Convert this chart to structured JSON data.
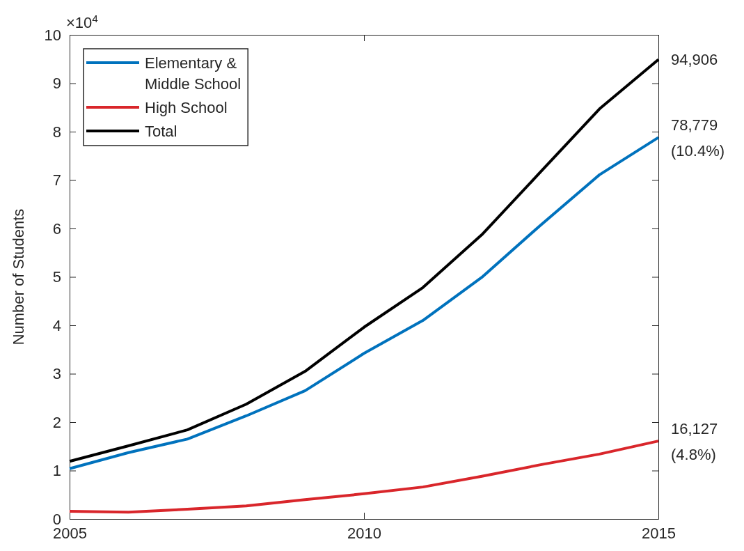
{
  "chart_data": {
    "type": "line",
    "ylabel": "Number of Students",
    "x": [
      2005,
      2006,
      2007,
      2008,
      2009,
      2010,
      2011,
      2012,
      2013,
      2014,
      2015
    ],
    "series": [
      {
        "name": "Elementary & Middle School",
        "color": "#0072bd",
        "values": [
          1.04,
          1.37,
          1.65,
          2.13,
          2.65,
          3.42,
          4.1,
          4.99,
          6.07,
          7.11,
          7.88
        ]
      },
      {
        "name": "High School",
        "color": "#d9262b",
        "values": [
          0.16,
          0.14,
          0.2,
          0.27,
          0.4,
          0.52,
          0.66,
          0.88,
          1.12,
          1.34,
          1.61
        ]
      },
      {
        "name": "Total",
        "color": "#000000",
        "values": [
          1.19,
          1.51,
          1.84,
          2.37,
          3.05,
          3.96,
          4.78,
          5.87,
          7.17,
          8.47,
          9.49
        ]
      }
    ],
    "xlim": [
      2005,
      2015
    ],
    "xticks": [
      2005,
      2010,
      2015
    ],
    "ylim": [
      0,
      10
    ],
    "yticks": [
      0,
      1,
      2,
      3,
      4,
      5,
      6,
      7,
      8,
      9,
      10
    ],
    "annotations": [
      "×10$^{4}$",
      "94,906",
      "78,779\n(10.4%)",
      "16,127\n(4.8%)"
    ],
    "legend": "top left",
    "grid": false,
    "marker": "none",
    "line_style": "solid"
  }
}
